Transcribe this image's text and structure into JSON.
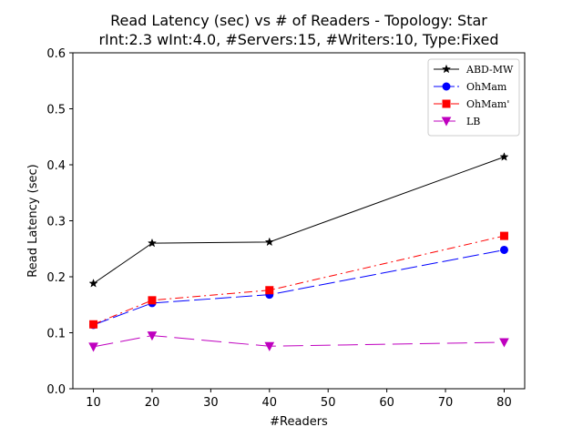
{
  "chart_data": {
    "type": "line",
    "title": "Read Latency (sec) vs # of Readers - Topology: Star",
    "subtitle": "rInt:2.3 wInt:4.0, #Servers:15, #Writers:10, Type:Fixed",
    "xlabel": "#Readers",
    "ylabel": "Read Latency (sec)",
    "xlim": [
      6.5,
      83.5
    ],
    "ylim": [
      0,
      0.6
    ],
    "xticks": [
      10,
      20,
      30,
      40,
      50,
      60,
      70,
      80
    ],
    "yticks": [
      0.0,
      0.1,
      0.2,
      0.3,
      0.4,
      0.5,
      0.6
    ],
    "xtick_labels": [
      "10",
      "20",
      "30",
      "40",
      "50",
      "60",
      "70",
      "80"
    ],
    "ytick_labels": [
      "0.0",
      "0.1",
      "0.2",
      "0.3",
      "0.4",
      "0.5",
      "0.6"
    ],
    "grid": false,
    "legend_position": "top-right",
    "x": [
      10,
      20,
      40,
      80
    ],
    "series": [
      {
        "name": "ABD-MW",
        "values": [
          0.188,
          0.26,
          0.262,
          0.414
        ],
        "color": "#000000",
        "marker": "star",
        "dash": ""
      },
      {
        "name": "OhMam",
        "values": [
          0.114,
          0.153,
          0.168,
          0.248
        ],
        "color": "#0000ff",
        "marker": "circle",
        "dash": "18,5"
      },
      {
        "name": "OhMam'",
        "values": [
          0.115,
          0.158,
          0.176,
          0.273
        ],
        "color": "#ff0000",
        "marker": "square",
        "dash": "9,4,2,4"
      },
      {
        "name": "LB",
        "values": [
          0.075,
          0.095,
          0.076,
          0.083
        ],
        "color": "#bf00bf",
        "marker": "triangle-down",
        "dash": "22,8"
      }
    ]
  }
}
